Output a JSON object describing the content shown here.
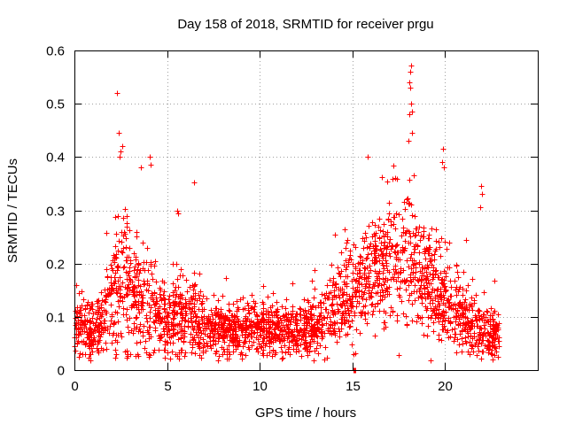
{
  "chart_data": {
    "type": "scatter",
    "title": "Day 158 of 2018, SRMTID for receiver prgu",
    "xlabel": "GPS time / hours",
    "ylabel": "SRMTID / TECUs",
    "xlim": [
      0,
      25
    ],
    "ylim": [
      0,
      0.6
    ],
    "x_ticks": [
      0,
      5,
      10,
      15,
      20
    ],
    "y_ticks": [
      0,
      0.1,
      0.2,
      0.3,
      0.4,
      0.5,
      0.6
    ],
    "x_tick_labels": [
      "0",
      "5",
      "10",
      "15",
      "20"
    ],
    "y_tick_labels": [
      "0",
      "0.1",
      "0.2",
      "0.3",
      "0.4",
      "0.5",
      "0.6"
    ],
    "grid": true,
    "marker": "+",
    "series": [
      {
        "name": "SRMTID",
        "color": "#ff0000",
        "profile": {
          "hours": [
            0.0,
            0.5,
            1.0,
            1.5,
            2.0,
            2.3,
            2.6,
            3.0,
            3.5,
            4.0,
            4.5,
            5.0,
            5.5,
            6.0,
            6.5,
            7.0,
            7.5,
            8.0,
            8.5,
            9.0,
            9.5,
            10.0,
            10.5,
            11.0,
            11.5,
            12.0,
            12.5,
            13.0,
            13.5,
            14.0,
            14.5,
            15.0,
            15.5,
            16.0,
            16.5,
            17.0,
            17.5,
            18.0,
            18.5,
            19.0,
            19.5,
            20.0,
            20.5,
            21.0,
            21.5,
            22.0,
            22.5,
            22.9
          ],
          "median": [
            0.085,
            0.08,
            0.075,
            0.09,
            0.13,
            0.16,
            0.17,
            0.15,
            0.14,
            0.13,
            0.1,
            0.09,
            0.11,
            0.1,
            0.095,
            0.09,
            0.085,
            0.08,
            0.075,
            0.075,
            0.085,
            0.085,
            0.08,
            0.08,
            0.075,
            0.075,
            0.08,
            0.085,
            0.1,
            0.12,
            0.14,
            0.14,
            0.16,
            0.18,
            0.2,
            0.22,
            0.21,
            0.22,
            0.19,
            0.17,
            0.15,
            0.13,
            0.12,
            0.1,
            0.085,
            0.075,
            0.07,
            0.065
          ],
          "spread": [
            0.03,
            0.03,
            0.03,
            0.04,
            0.06,
            0.08,
            0.08,
            0.07,
            0.07,
            0.06,
            0.04,
            0.04,
            0.05,
            0.04,
            0.04,
            0.035,
            0.03,
            0.03,
            0.025,
            0.025,
            0.03,
            0.03,
            0.03,
            0.03,
            0.025,
            0.025,
            0.03,
            0.03,
            0.035,
            0.04,
            0.05,
            0.05,
            0.06,
            0.06,
            0.06,
            0.07,
            0.07,
            0.08,
            0.07,
            0.06,
            0.05,
            0.05,
            0.045,
            0.04,
            0.035,
            0.03,
            0.03,
            0.025
          ]
        },
        "notable_points": [
          {
            "x": 2.3,
            "y": 0.52
          },
          {
            "x": 2.4,
            "y": 0.445
          },
          {
            "x": 2.5,
            "y": 0.41
          },
          {
            "x": 2.45,
            "y": 0.4
          },
          {
            "x": 2.6,
            "y": 0.42
          },
          {
            "x": 4.05,
            "y": 0.4
          },
          {
            "x": 4.1,
            "y": 0.385
          },
          {
            "x": 3.6,
            "y": 0.38
          },
          {
            "x": 6.45,
            "y": 0.352
          },
          {
            "x": 5.55,
            "y": 0.3
          },
          {
            "x": 5.6,
            "y": 0.295
          },
          {
            "x": 15.1,
            "y": 0.0
          },
          {
            "x": 15.05,
            "y": 0.0
          },
          {
            "x": 15.15,
            "y": 0.0
          },
          {
            "x": 15.8,
            "y": 0.4
          },
          {
            "x": 18.15,
            "y": 0.572
          },
          {
            "x": 18.1,
            "y": 0.56
          },
          {
            "x": 18.05,
            "y": 0.54
          },
          {
            "x": 18.1,
            "y": 0.53
          },
          {
            "x": 18.15,
            "y": 0.5
          },
          {
            "x": 18.2,
            "y": 0.485
          },
          {
            "x": 18.05,
            "y": 0.48
          },
          {
            "x": 18.2,
            "y": 0.445
          },
          {
            "x": 18.0,
            "y": 0.43
          },
          {
            "x": 19.9,
            "y": 0.415
          },
          {
            "x": 19.85,
            "y": 0.39
          },
          {
            "x": 19.95,
            "y": 0.38
          },
          {
            "x": 21.95,
            "y": 0.345
          },
          {
            "x": 22.0,
            "y": 0.33
          },
          {
            "x": 21.9,
            "y": 0.305
          }
        ]
      }
    ]
  }
}
